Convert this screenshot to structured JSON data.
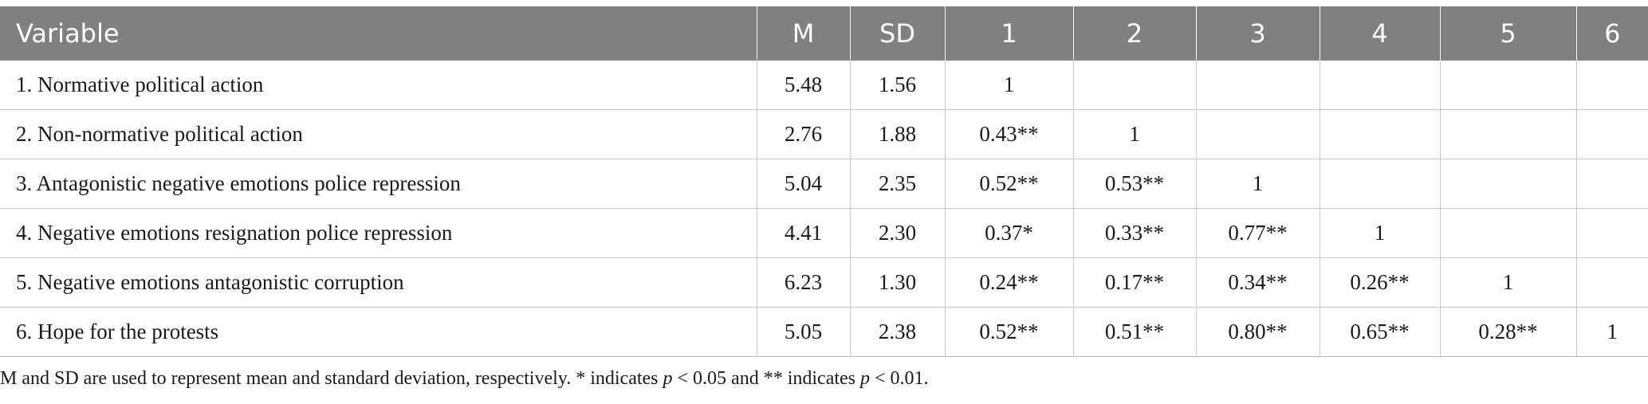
{
  "table": {
    "headers": [
      "Variable",
      "M",
      "SD",
      "1",
      "2",
      "3",
      "4",
      "5",
      "6"
    ],
    "rows": [
      [
        "1. Normative political action",
        "5.48",
        "1.56",
        "1",
        "",
        "",
        "",
        "",
        ""
      ],
      [
        "2. Non-normative political action",
        "2.76",
        "1.88",
        "0.43**",
        "1",
        "",
        "",
        "",
        ""
      ],
      [
        "3. Antagonistic negative emotions police repression",
        "5.04",
        "2.35",
        "0.52**",
        "0.53**",
        "1",
        "",
        "",
        ""
      ],
      [
        "4. Negative emotions resignation police repression",
        "4.41",
        "2.30",
        "0.37*",
        "0.33**",
        "0.77**",
        "1",
        "",
        ""
      ],
      [
        "5. Negative emotions antagonistic corruption",
        "6.23",
        "1.30",
        "0.24**",
        "0.17**",
        "0.34**",
        "0.26**",
        "1",
        ""
      ],
      [
        "6. Hope for the protests",
        "5.05",
        "2.38",
        "0.52**",
        "0.51**",
        "0.80**",
        "0.65**",
        "0.28**",
        "1"
      ]
    ]
  },
  "note": {
    "part1": "M and SD are used to represent mean and standard deviation, respectively. * indicates ",
    "p1": "p",
    "part2": " < 0.05 and ** indicates ",
    "p2": "p",
    "part3": " < 0.01."
  }
}
